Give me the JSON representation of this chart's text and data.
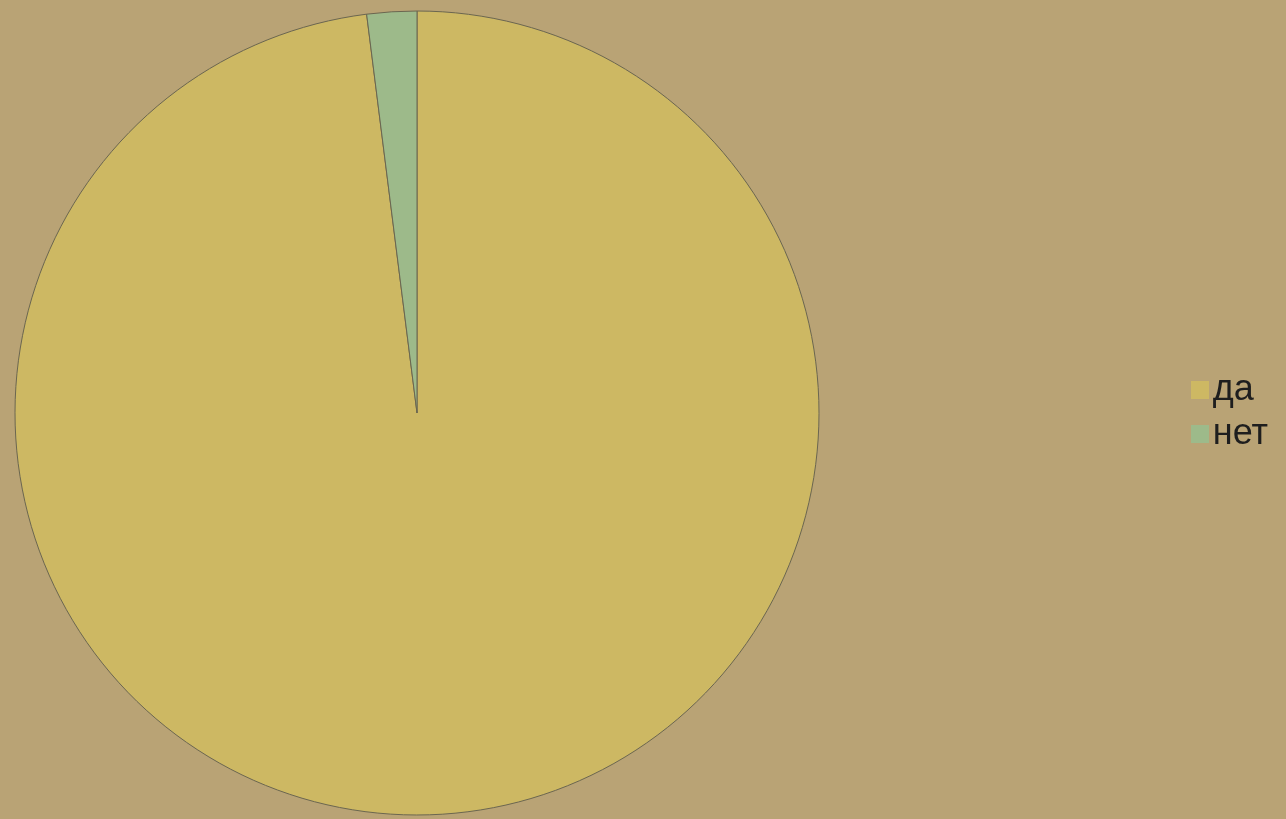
{
  "chart_data": {
    "type": "pie",
    "categories": [
      "да",
      "нет"
    ],
    "values": [
      98,
      2
    ],
    "colors": [
      "#cdb863",
      "#9dba8a"
    ],
    "legend": "right"
  }
}
